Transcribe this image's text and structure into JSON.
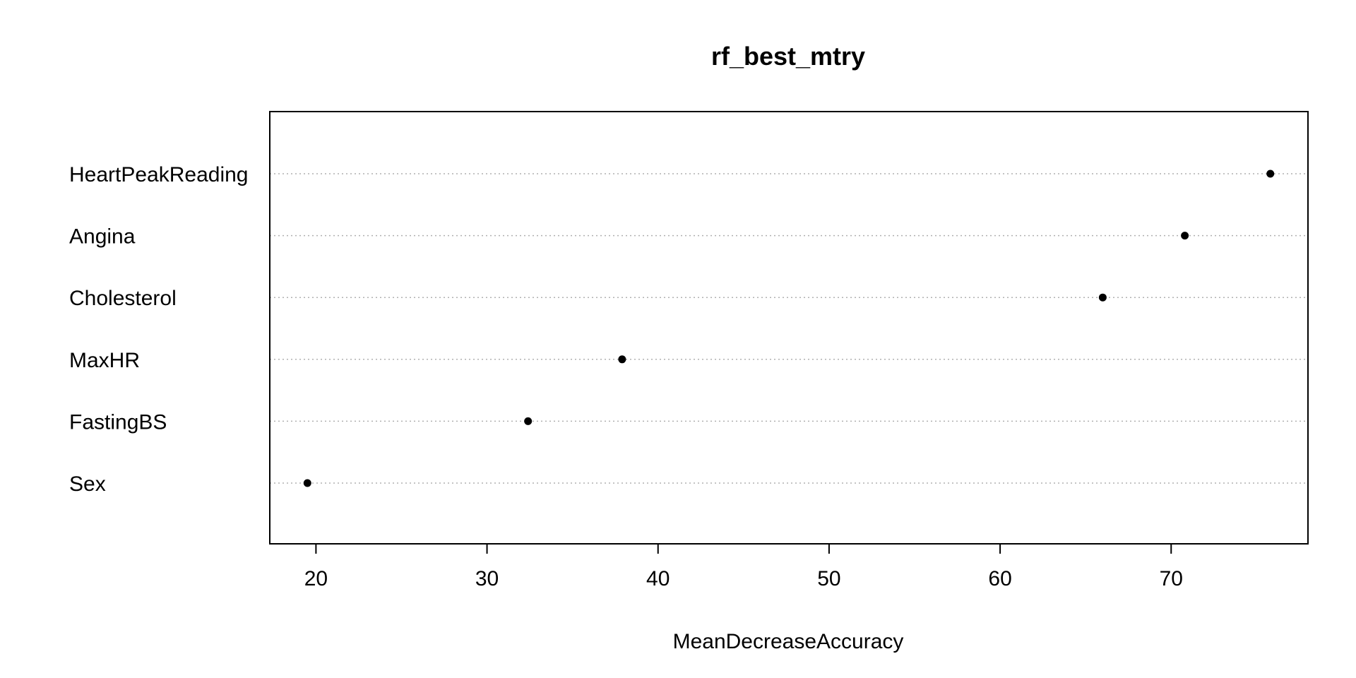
{
  "chart_data": {
    "type": "scatter",
    "title": "rf_best_mtry",
    "xlabel": "MeanDecreaseAccuracy",
    "ylabel": "",
    "categories": [
      "HeartPeakReading",
      "Angina",
      "Cholesterol",
      "MaxHR",
      "FastingBS",
      "Sex"
    ],
    "values": [
      75.8,
      70.8,
      66.0,
      37.9,
      32.4,
      19.5
    ],
    "xlim": [
      17.3,
      78.0
    ],
    "xticks": [
      "20",
      "30",
      "40",
      "50",
      "60",
      "70"
    ],
    "grid": "dotted horizontal lines at each category",
    "legend": "none"
  }
}
